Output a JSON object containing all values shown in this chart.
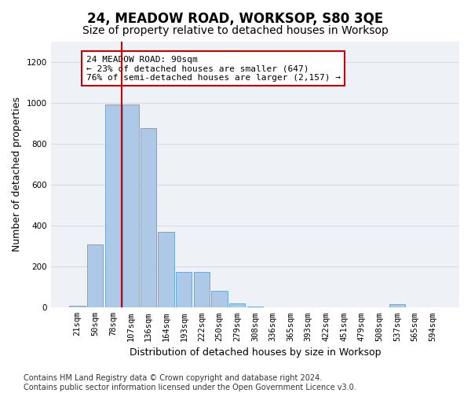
{
  "title": "24, MEADOW ROAD, WORKSOP, S80 3QE",
  "subtitle": "Size of property relative to detached houses in Worksop",
  "xlabel": "Distribution of detached houses by size in Worksop",
  "ylabel": "Number of detached properties",
  "bar_values": [
    10,
    310,
    990,
    990,
    875,
    370,
    175,
    175,
    80,
    22,
    5,
    0,
    0,
    0,
    0,
    0,
    0,
    0,
    15,
    0,
    0
  ],
  "bar_labels": [
    "21sqm",
    "50sqm",
    "78sqm",
    "107sqm",
    "136sqm",
    "164sqm",
    "193sqm",
    "222sqm",
    "250sqm",
    "279sqm",
    "308sqm",
    "336sqm",
    "365sqm",
    "393sqm",
    "422sqm",
    "451sqm",
    "479sqm",
    "508sqm",
    "537sqm",
    "565sqm",
    "594sqm"
  ],
  "bar_color": "#aec9e8",
  "bar_edge_color": "#6aaad4",
  "annotation_box_text": "24 MEADOW ROAD: 90sqm\n← 23% of detached houses are smaller (647)\n76% of semi-detached houses are larger (2,157) →",
  "annotation_box_color": "#ffffff",
  "annotation_box_edge_color": "#cc0000",
  "vline_x": 2.5,
  "vline_color": "#cc0000",
  "ylim": [
    0,
    1300
  ],
  "yticks": [
    0,
    200,
    400,
    600,
    800,
    1000,
    1200
  ],
  "grid_color": "#d0dce8",
  "background_color": "#eef2f7",
  "footer_text": "Contains HM Land Registry data © Crown copyright and database right 2024.\nContains public sector information licensed under the Open Government Licence v3.0.",
  "title_fontsize": 12,
  "subtitle_fontsize": 10,
  "xlabel_fontsize": 9,
  "ylabel_fontsize": 9,
  "tick_fontsize": 7.5,
  "annotation_fontsize": 8,
  "footer_fontsize": 7
}
